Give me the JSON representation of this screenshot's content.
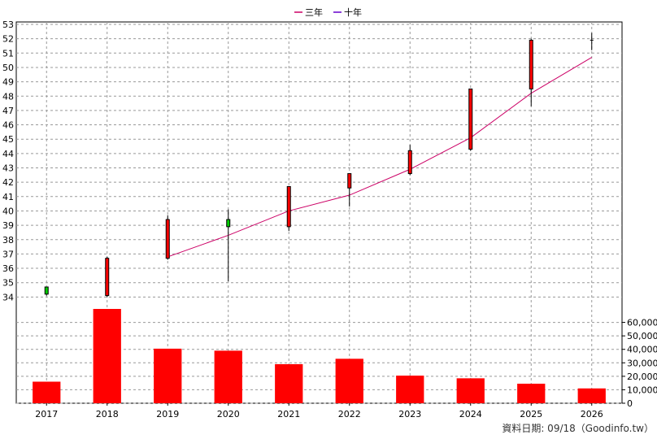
{
  "chart_data": {
    "type": "candlestick+bar",
    "legend": [
      {
        "name": "三年",
        "color": "#cc0066"
      },
      {
        "name": "十年",
        "color": "#6600cc"
      }
    ],
    "legend_position": "top-center",
    "grid": true,
    "categories": [
      "2017",
      "2018",
      "2019",
      "2020",
      "2021",
      "2022",
      "2023",
      "2024",
      "2025",
      "2026"
    ],
    "price_axis": {
      "ylim": [
        33,
        53
      ],
      "ticks": [
        34,
        35,
        36,
        37,
        38,
        39,
        40,
        41,
        42,
        43,
        44,
        45,
        46,
        47,
        48,
        49,
        50,
        51,
        52,
        53
      ],
      "side": "left"
    },
    "candles": [
      {
        "open": 34.2,
        "close": 34.7,
        "high": 34.7,
        "low": 34.1,
        "color": "#00cc00"
      },
      {
        "open": 36.7,
        "close": 34.1,
        "high": 36.8,
        "low": 34.0,
        "color": "#ff0000"
      },
      {
        "open": 39.4,
        "close": 36.7,
        "high": 39.7,
        "low": 36.6,
        "color": "#ff0000"
      },
      {
        "open": 38.9,
        "close": 39.4,
        "high": 40.1,
        "low": 35.1,
        "color": "#00cc00"
      },
      {
        "open": 41.7,
        "close": 38.9,
        "high": 41.7,
        "low": 38.6,
        "color": "#ff0000"
      },
      {
        "open": 42.6,
        "close": 41.6,
        "high": 42.6,
        "low": 40.3,
        "color": "#ff0000"
      },
      {
        "open": 44.2,
        "close": 42.6,
        "high": 44.6,
        "low": 42.5,
        "color": "#ff0000"
      },
      {
        "open": 48.5,
        "close": 44.3,
        "high": 48.5,
        "low": 44.2,
        "color": "#ff0000"
      },
      {
        "open": 51.9,
        "close": 48.5,
        "high": 52.0,
        "low": 47.3,
        "color": "#ff0000"
      },
      {
        "open": 51.9,
        "close": 51.9,
        "high": 52.4,
        "low": 51.2,
        "color": "#000000"
      }
    ],
    "series": [
      {
        "name": "三年",
        "color": "#cc0066",
        "values": [
          null,
          null,
          36.8,
          38.3,
          40.0,
          41.1,
          42.9,
          45.1,
          48.2,
          50.7
        ]
      }
    ],
    "volume_axis": {
      "ylim": [
        0,
        70000
      ],
      "ticks": [
        0,
        10000,
        20000,
        30000,
        40000,
        50000,
        60000
      ],
      "tick_labels": [
        "0",
        "10,000",
        "20,000",
        "30,000",
        "40,000",
        "50,000",
        "60,000"
      ],
      "side": "right"
    },
    "volume": {
      "color": "#ff0000",
      "values": [
        16000,
        70000,
        40500,
        39000,
        29000,
        33000,
        20500,
        18500,
        14500,
        11000
      ]
    }
  },
  "footer": "資料日期: 09/18（Goodinfo.tw）"
}
